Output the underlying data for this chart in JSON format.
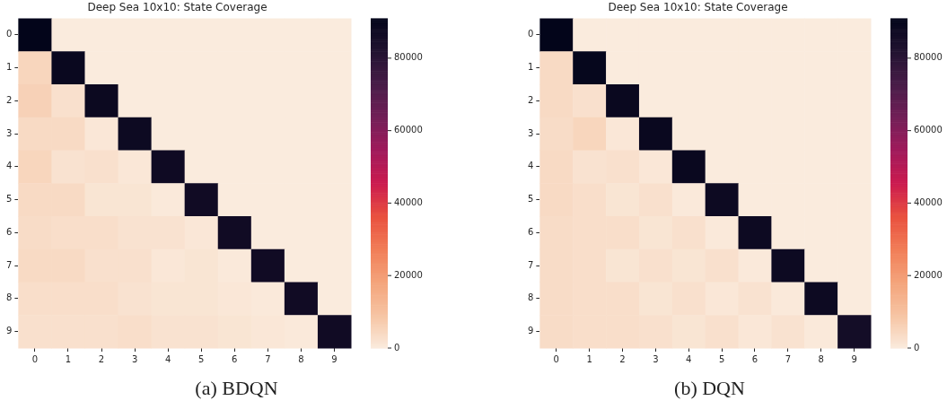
{
  "chart_data": [
    {
      "type": "heatmap",
      "title": "Deep Sea 10x10: State Coverage",
      "categories": [
        "0",
        "1",
        "2",
        "3",
        "4",
        "5",
        "6",
        "7",
        "8",
        "9"
      ],
      "y_categories": [
        "0",
        "1",
        "2",
        "3",
        "4",
        "5",
        "6",
        "7",
        "8",
        "9"
      ],
      "cells": [
        [
          91000,
          0,
          0,
          0,
          0,
          0,
          0,
          0,
          0,
          0
        ],
        [
          5000,
          89000,
          0,
          0,
          0,
          0,
          0,
          0,
          0,
          0
        ],
        [
          6000,
          2500,
          88500,
          0,
          0,
          0,
          0,
          0,
          0,
          0
        ],
        [
          4000,
          4000,
          1000,
          88000,
          0,
          0,
          0,
          0,
          0,
          0
        ],
        [
          5000,
          2000,
          2500,
          1000,
          87500,
          0,
          0,
          0,
          0,
          0
        ],
        [
          4000,
          4000,
          1500,
          1500,
          500,
          87000,
          0,
          0,
          0,
          0
        ],
        [
          3500,
          3000,
          3000,
          2000,
          2000,
          1000,
          87000,
          0,
          0,
          0
        ],
        [
          4000,
          4000,
          2500,
          2500,
          1000,
          1500,
          500,
          87000,
          0,
          0
        ],
        [
          3000,
          3000,
          3000,
          2000,
          1500,
          1500,
          1000,
          500,
          87000,
          0
        ],
        [
          2500,
          2500,
          2500,
          3000,
          2000,
          2000,
          1500,
          1000,
          500,
          87000
        ]
      ],
      "clim": [
        0,
        91000
      ],
      "cticks": [
        0,
        20000,
        40000,
        60000,
        80000
      ],
      "annotations": [
        "(a) BDQN"
      ]
    },
    {
      "type": "heatmap",
      "title": "Deep Sea 10x10: State Coverage",
      "categories": [
        "0",
        "1",
        "2",
        "3",
        "4",
        "5",
        "6",
        "7",
        "8",
        "9"
      ],
      "y_categories": [
        "0",
        "1",
        "2",
        "3",
        "4",
        "5",
        "6",
        "7",
        "8",
        "9"
      ],
      "cells": [
        [
          91000,
          0,
          0,
          0,
          0,
          0,
          0,
          0,
          0,
          0
        ],
        [
          4000,
          90000,
          0,
          0,
          0,
          0,
          0,
          0,
          0,
          0
        ],
        [
          4000,
          2500,
          89000,
          0,
          0,
          0,
          0,
          0,
          0,
          0
        ],
        [
          3500,
          5000,
          1000,
          89000,
          0,
          0,
          0,
          0,
          0,
          0
        ],
        [
          4000,
          2000,
          2500,
          1000,
          89000,
          0,
          0,
          0,
          0,
          0
        ],
        [
          4000,
          3000,
          1500,
          2500,
          500,
          88000,
          0,
          0,
          0,
          0
        ],
        [
          3500,
          3000,
          3000,
          1500,
          2500,
          500,
          88000,
          0,
          0,
          0
        ],
        [
          3500,
          3000,
          1500,
          2500,
          1500,
          2500,
          500,
          88000,
          0,
          0
        ],
        [
          3500,
          3000,
          3000,
          1500,
          2500,
          1000,
          2000,
          500,
          88000,
          0
        ],
        [
          3500,
          3000,
          3000,
          2500,
          1500,
          2500,
          1000,
          2000,
          500,
          86000
        ]
      ],
      "clim": [
        0,
        91000
      ],
      "cticks": [
        0,
        20000,
        40000,
        60000,
        80000
      ],
      "annotations": [
        "(b) DQN"
      ]
    }
  ]
}
